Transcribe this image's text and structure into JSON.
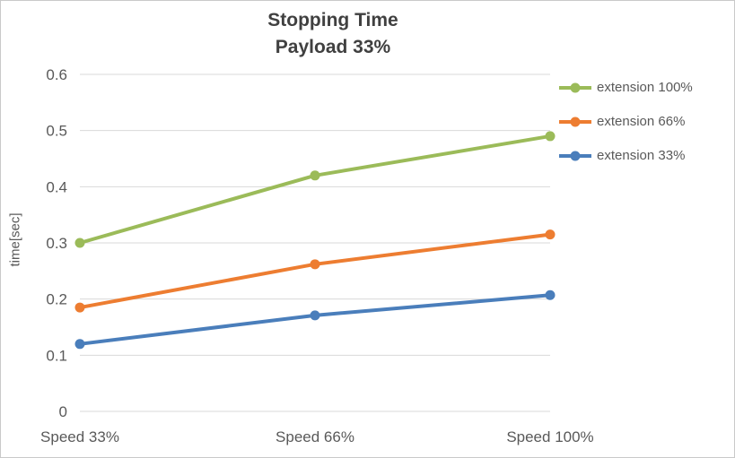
{
  "chart_data": {
    "type": "line",
    "title": "Stopping Time",
    "subtitle": "Payload 33%",
    "ylabel": "time[sec]",
    "categories": [
      "Speed 33%",
      "Speed 66%",
      "Speed 100%"
    ],
    "series": [
      {
        "name": "extension 100%",
        "color": "#9bbb59",
        "values": [
          0.3,
          0.42,
          0.49
        ]
      },
      {
        "name": "extension 66%",
        "color": "#ed7d31",
        "values": [
          0.185,
          0.262,
          0.315
        ]
      },
      {
        "name": "extension 33%",
        "color": "#4a7ebb",
        "values": [
          0.12,
          0.171,
          0.207
        ]
      }
    ],
    "ylim": [
      0,
      0.6
    ],
    "yticks": [
      "0",
      "0.1",
      "0.2",
      "0.3",
      "0.4",
      "0.5",
      "0.6"
    ],
    "grid": true,
    "legend_position": "right",
    "gridline_color": "#d9d9d9"
  }
}
